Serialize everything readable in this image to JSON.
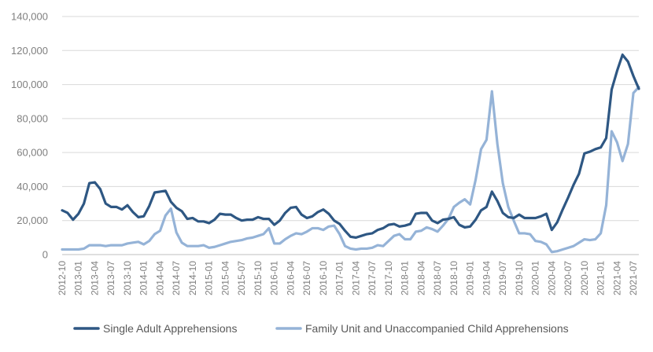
{
  "chart_data": {
    "type": "line",
    "title": "",
    "xlabel": "",
    "ylabel": "",
    "ylim": [
      0,
      140000
    ],
    "y_ticks": [
      "0",
      "20,000",
      "40,000",
      "60,000",
      "80,000",
      "100,000",
      "120,000",
      "140,000"
    ],
    "y_tick_values": [
      0,
      20000,
      40000,
      60000,
      80000,
      100000,
      120000,
      140000
    ],
    "grid": "horizontal",
    "legend_position": "bottom",
    "x_tick_labels": [
      "2012-10",
      "2013-01",
      "2013-04",
      "2013-07",
      "2013-10",
      "2014-01",
      "2014-04",
      "2014-07",
      "2014-10",
      "2015-01",
      "2015-04",
      "2015-07",
      "2015-10",
      "2016-01",
      "2016-04",
      "2016-07",
      "2016-10",
      "2017-01",
      "2017-04",
      "2017-07",
      "2017-10",
      "2018-01",
      "2018-04",
      "2018-07",
      "2018-10",
      "2019-01",
      "2019-04",
      "2019-07",
      "2019-10",
      "2020-01",
      "2020-04",
      "2020-07",
      "2020-10",
      "2021-01",
      "2021-04",
      "2021-07"
    ],
    "x_start": "2012-10",
    "series": [
      {
        "name": "Single Adult Apprehensions",
        "color": "#2e5783",
        "values": [
          26000,
          24500,
          20500,
          24000,
          30000,
          42000,
          42500,
          38500,
          30000,
          28000,
          28000,
          26500,
          29000,
          25000,
          22000,
          22500,
          28500,
          36500,
          37000,
          37500,
          31000,
          27500,
          25500,
          21000,
          21500,
          19500,
          19500,
          18500,
          20500,
          24000,
          23500,
          23500,
          21500,
          20000,
          20500,
          20500,
          22000,
          21000,
          21000,
          17500,
          20000,
          24500,
          27500,
          28000,
          23500,
          21500,
          22500,
          25000,
          26500,
          24000,
          20000,
          18000,
          14000,
          10500,
          10000,
          11000,
          12000,
          12500,
          14500,
          15500,
          17500,
          18000,
          16500,
          17000,
          18000,
          24000,
          24500,
          24500,
          20000,
          18500,
          20500,
          21000,
          22000,
          17500,
          16000,
          16500,
          20500,
          26000,
          28000,
          37000,
          31500,
          24500,
          22000,
          21500,
          23500,
          21500,
          21500,
          21500,
          22500,
          24000,
          14500,
          19000,
          26500,
          33500,
          41000,
          47500,
          59500,
          60500,
          62000,
          63000,
          68500,
          97000,
          108000,
          117500,
          113500,
          105000,
          97500
        ]
      },
      {
        "name": "Family Unit and Unaccompanied Child Apprehensions",
        "color": "#95b3d7",
        "values": [
          3000,
          3000,
          3000,
          3000,
          3500,
          5500,
          5500,
          5500,
          5000,
          5500,
          5500,
          5500,
          6500,
          7000,
          7500,
          6000,
          8000,
          12000,
          14000,
          23000,
          27000,
          13000,
          7000,
          5000,
          5000,
          5000,
          5500,
          4000,
          4500,
          5500,
          6500,
          7500,
          8000,
          8500,
          9500,
          10000,
          11000,
          12000,
          15500,
          6500,
          6500,
          9000,
          11000,
          12500,
          12000,
          13500,
          15500,
          15500,
          14500,
          16500,
          17000,
          12000,
          5000,
          3500,
          3000,
          3500,
          3500,
          4000,
          5500,
          5000,
          8000,
          11000,
          12000,
          9000,
          9000,
          13500,
          14000,
          16000,
          15000,
          13500,
          17000,
          21000,
          28000,
          30500,
          32500,
          29500,
          44000,
          62000,
          67500,
          96000,
          65000,
          42000,
          28000,
          20000,
          12500,
          12500,
          12000,
          8000,
          7500,
          6000,
          1500,
          2000,
          3000,
          4000,
          5000,
          7000,
          9000,
          8500,
          9000,
          12500,
          29000,
          72500,
          66000,
          55000,
          65000,
          95000,
          98500
        ]
      }
    ]
  }
}
